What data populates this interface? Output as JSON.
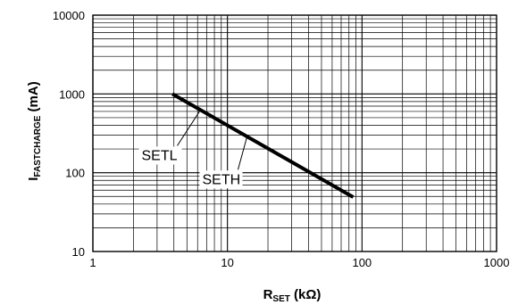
{
  "chart_data": {
    "type": "line",
    "x_scale": "log",
    "y_scale": "log",
    "xlim": [
      1,
      1000
    ],
    "ylim": [
      10,
      10000
    ],
    "x_ticks": [
      "1",
      "10",
      "100",
      "1000"
    ],
    "y_ticks": [
      "10",
      "100",
      "1000",
      "10000"
    ],
    "xlabel": {
      "main": "R",
      "sub": "SET",
      "unit": " (kΩ)"
    },
    "ylabel": {
      "main": "I",
      "sub": "FASTCHARGE",
      "unit": " (mA)"
    },
    "grid": true,
    "line_color": "#000000",
    "series": [
      {
        "x": [
          3.9,
          86
        ],
        "y": [
          1000,
          49
        ]
      }
    ],
    "annotations": [
      {
        "text": "SETL",
        "x": 6.2,
        "y": 600,
        "label_x": 2.3,
        "label_y": 145
      },
      {
        "text": "SETH",
        "x": 14,
        "y": 290,
        "label_x": 6.5,
        "label_y": 72
      }
    ]
  }
}
